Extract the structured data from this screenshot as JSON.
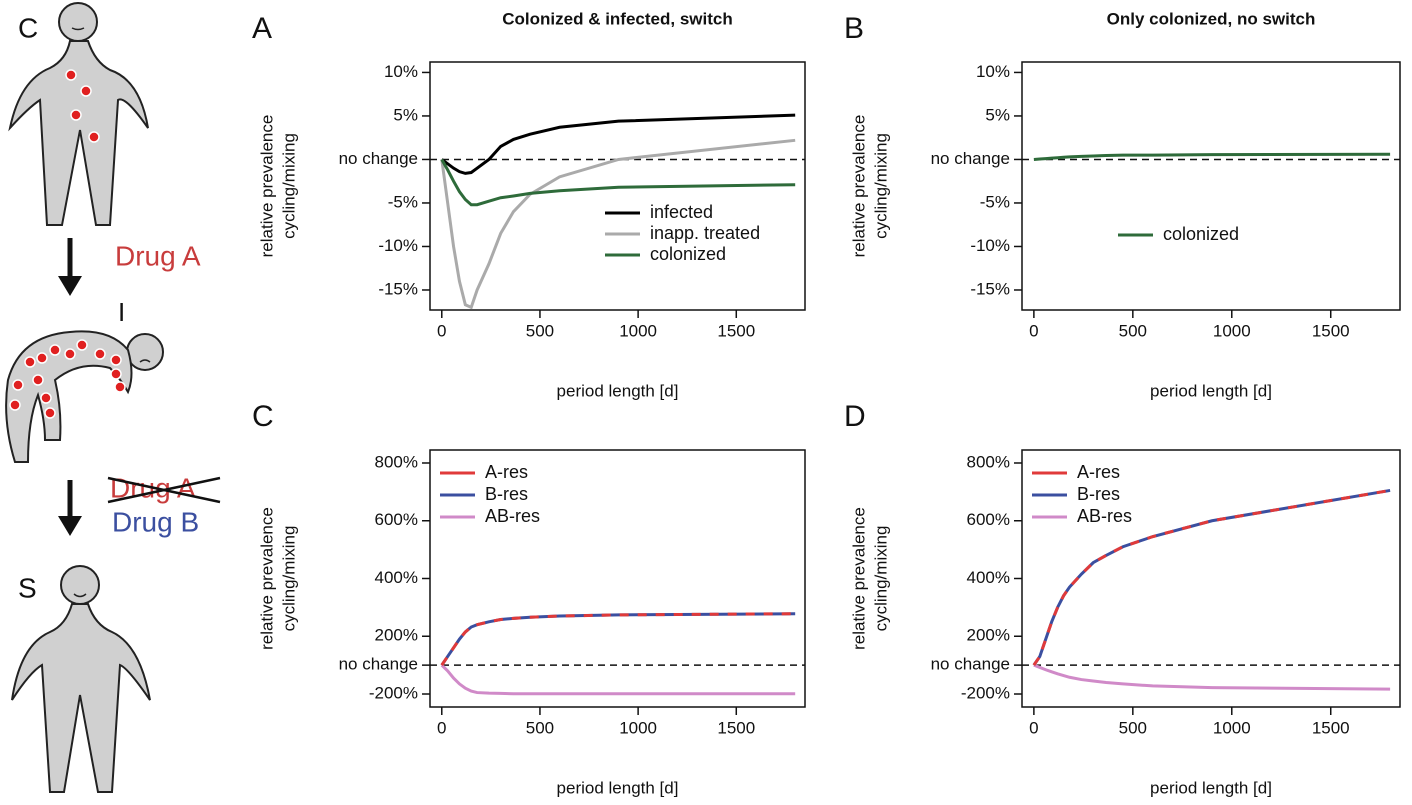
{
  "diagram": {
    "state_c": "C",
    "state_i": "I",
    "state_s": "S",
    "drug_a": "Drug A",
    "drug_a_crossed": "Drug A",
    "drug_b": "Drug B"
  },
  "chart_data": [
    {
      "type": "line",
      "panel": "A",
      "title": "Colonized & infected, switch",
      "ylabel": [
        "relative prevalence",
        "cycling/mixing"
      ],
      "xlabel": "period length [d]",
      "x": [
        0,
        30,
        60,
        90,
        120,
        150,
        180,
        240,
        300,
        365,
        450,
        600,
        900,
        1800
      ],
      "xlim": [
        -60,
        1850
      ],
      "xticks": [
        0,
        500,
        1000,
        1500
      ],
      "ylim": [
        -17.3,
        11.2
      ],
      "yticks": [
        {
          "value": 10,
          "label": "10%"
        },
        {
          "value": 5,
          "label": "5%"
        },
        {
          "value": 0,
          "label": "no change"
        },
        {
          "value": -5,
          "label": "-5%"
        },
        {
          "value": -10,
          "label": "-10%"
        },
        {
          "value": -15,
          "label": "-15%"
        }
      ],
      "hline": 0,
      "legend": "lower right",
      "series": [
        {
          "name": "infected",
          "color": "#000000",
          "values": [
            0,
            -0.5,
            -1.0,
            -1.4,
            -1.6,
            -1.5,
            -1.0,
            0,
            1.5,
            2.3,
            2.9,
            3.7,
            4.4,
            5.1
          ]
        },
        {
          "name": "inapp. treated",
          "color": "#aaaaaa",
          "values": [
            0,
            -5,
            -10,
            -14,
            -16.7,
            -17,
            -15,
            -12,
            -8.5,
            -6,
            -4,
            -2,
            0,
            2.2
          ]
        },
        {
          "name": "colonized",
          "color": "#2e6b3a",
          "values": [
            0,
            -1.2,
            -2.5,
            -3.7,
            -4.6,
            -5.2,
            -5.2,
            -4.8,
            -4.4,
            -4.2,
            -3.9,
            -3.6,
            -3.2,
            -2.9
          ]
        }
      ]
    },
    {
      "type": "line",
      "panel": "B",
      "title": "Only colonized, no switch",
      "ylabel": [
        "relative prevalence",
        "cycling/mixing"
      ],
      "xlabel": "period length [d]",
      "x": [
        0,
        30,
        60,
        90,
        120,
        150,
        180,
        240,
        300,
        365,
        450,
        600,
        900,
        1800
      ],
      "xlim": [
        -60,
        1850
      ],
      "xticks": [
        0,
        500,
        1000,
        1500
      ],
      "ylim": [
        -17.3,
        11.2
      ],
      "yticks": [
        {
          "value": 10,
          "label": "10%"
        },
        {
          "value": 5,
          "label": "5%"
        },
        {
          "value": 0,
          "label": "no change"
        },
        {
          "value": -5,
          "label": "-5%"
        },
        {
          "value": -10,
          "label": "-10%"
        },
        {
          "value": -15,
          "label": "-15%"
        }
      ],
      "hline": 0,
      "legend": "center",
      "series": [
        {
          "name": "colonized",
          "color": "#2e6b3a",
          "values": [
            0,
            0.05,
            0.1,
            0.15,
            0.2,
            0.25,
            0.3,
            0.35,
            0.4,
            0.45,
            0.5,
            0.5,
            0.55,
            0.6
          ]
        }
      ]
    },
    {
      "type": "line",
      "panel": "C",
      "ylabel": [
        "relative prevalence",
        "cycling/mixing"
      ],
      "xlabel": "period length [d]",
      "x": [
        0,
        30,
        60,
        90,
        120,
        150,
        180,
        240,
        300,
        365,
        450,
        600,
        900,
        1800
      ],
      "xlim": [
        -60,
        1850
      ],
      "xticks": [
        0,
        500,
        1000,
        1500
      ],
      "ylim": [
        -45,
        845
      ],
      "yticks": [
        {
          "value": 800,
          "label": "800%"
        },
        {
          "value": 600,
          "label": "600%"
        },
        {
          "value": 400,
          "label": "400%"
        },
        {
          "value": 200,
          "label": "200%"
        },
        {
          "value": 100,
          "label": "no change"
        },
        {
          "value": 0,
          "label": "-200%"
        }
      ],
      "hline": 100,
      "legend": "upper left",
      "series": [
        {
          "name": "A-res",
          "color": "#e03a3a",
          "linestyle": "dashed",
          "values": [
            100,
            130,
            160,
            190,
            215,
            232,
            240,
            250,
            258,
            262,
            266,
            270,
            274,
            278
          ]
        },
        {
          "name": "B-res",
          "color": "#3b4fa0",
          "values": [
            100,
            130,
            160,
            190,
            215,
            232,
            240,
            250,
            258,
            262,
            266,
            270,
            274,
            278
          ]
        },
        {
          "name": "AB-res",
          "color": "#d08ac8",
          "values": [
            100,
            80,
            55,
            35,
            20,
            10,
            5,
            3,
            2,
            1,
            1,
            1,
            1,
            1
          ]
        }
      ]
    },
    {
      "type": "line",
      "panel": "D",
      "ylabel": [
        "relative prevalence",
        "cycling/mixing"
      ],
      "xlabel": "period length [d]",
      "x": [
        0,
        30,
        60,
        90,
        120,
        150,
        180,
        240,
        300,
        365,
        450,
        600,
        900,
        1800
      ],
      "xlim": [
        -60,
        1850
      ],
      "xticks": [
        0,
        500,
        1000,
        1500
      ],
      "ylim": [
        -45,
        845
      ],
      "yticks": [
        {
          "value": 800,
          "label": "800%"
        },
        {
          "value": 600,
          "label": "600%"
        },
        {
          "value": 400,
          "label": "400%"
        },
        {
          "value": 200,
          "label": "200%"
        },
        {
          "value": 100,
          "label": "no change"
        },
        {
          "value": 0,
          "label": "-200%"
        }
      ],
      "hline": 100,
      "legend": "upper left",
      "series": [
        {
          "name": "A-res",
          "color": "#e03a3a",
          "linestyle": "dashed",
          "values": [
            100,
            130,
            190,
            250,
            300,
            340,
            370,
            415,
            455,
            480,
            510,
            545,
            600,
            705
          ]
        },
        {
          "name": "B-res",
          "color": "#3b4fa0",
          "values": [
            100,
            130,
            190,
            250,
            300,
            340,
            370,
            415,
            455,
            480,
            510,
            545,
            600,
            705
          ]
        },
        {
          "name": "AB-res",
          "color": "#d08ac8",
          "values": [
            100,
            92,
            84,
            77,
            70,
            64,
            58,
            50,
            45,
            40,
            35,
            28,
            22,
            17
          ]
        }
      ]
    }
  ]
}
